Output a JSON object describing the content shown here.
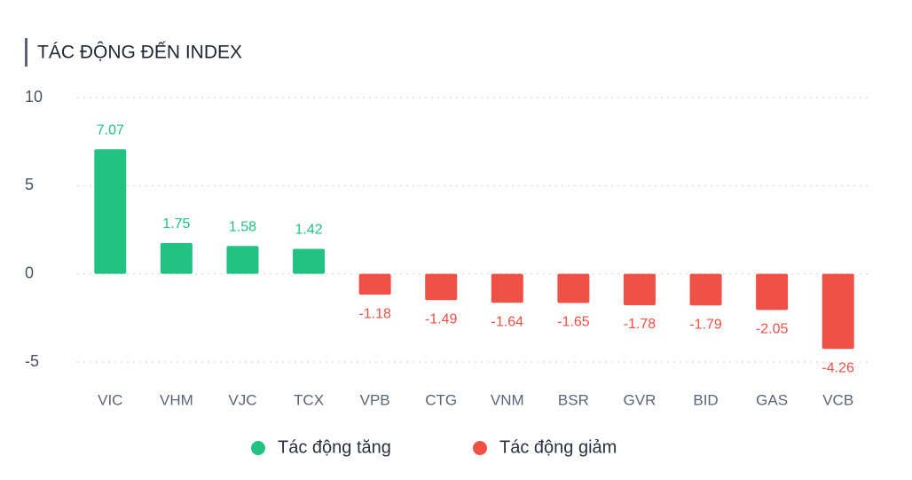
{
  "chart_data": {
    "type": "bar",
    "title": "TÁC ĐỘNG ĐẾN INDEX",
    "categories": [
      "VIC",
      "VHM",
      "VJC",
      "TCX",
      "VPB",
      "CTG",
      "VNM",
      "BSR",
      "GVR",
      "BID",
      "GAS",
      "VCB"
    ],
    "series": [
      {
        "name": "Tác động tăng",
        "color": "#22c382",
        "values": [
          7.07,
          1.75,
          1.58,
          1.42,
          null,
          null,
          null,
          null,
          null,
          null,
          null,
          null
        ]
      },
      {
        "name": "Tác động giảm",
        "color": "#f05146",
        "values": [
          null,
          null,
          null,
          null,
          -1.18,
          -1.49,
          -1.64,
          -1.65,
          -1.78,
          -1.79,
          -2.05,
          -4.26
        ]
      }
    ],
    "ylim": [
      -5,
      10
    ],
    "yticks": [
      -5,
      0,
      5,
      10
    ],
    "grid": true
  }
}
